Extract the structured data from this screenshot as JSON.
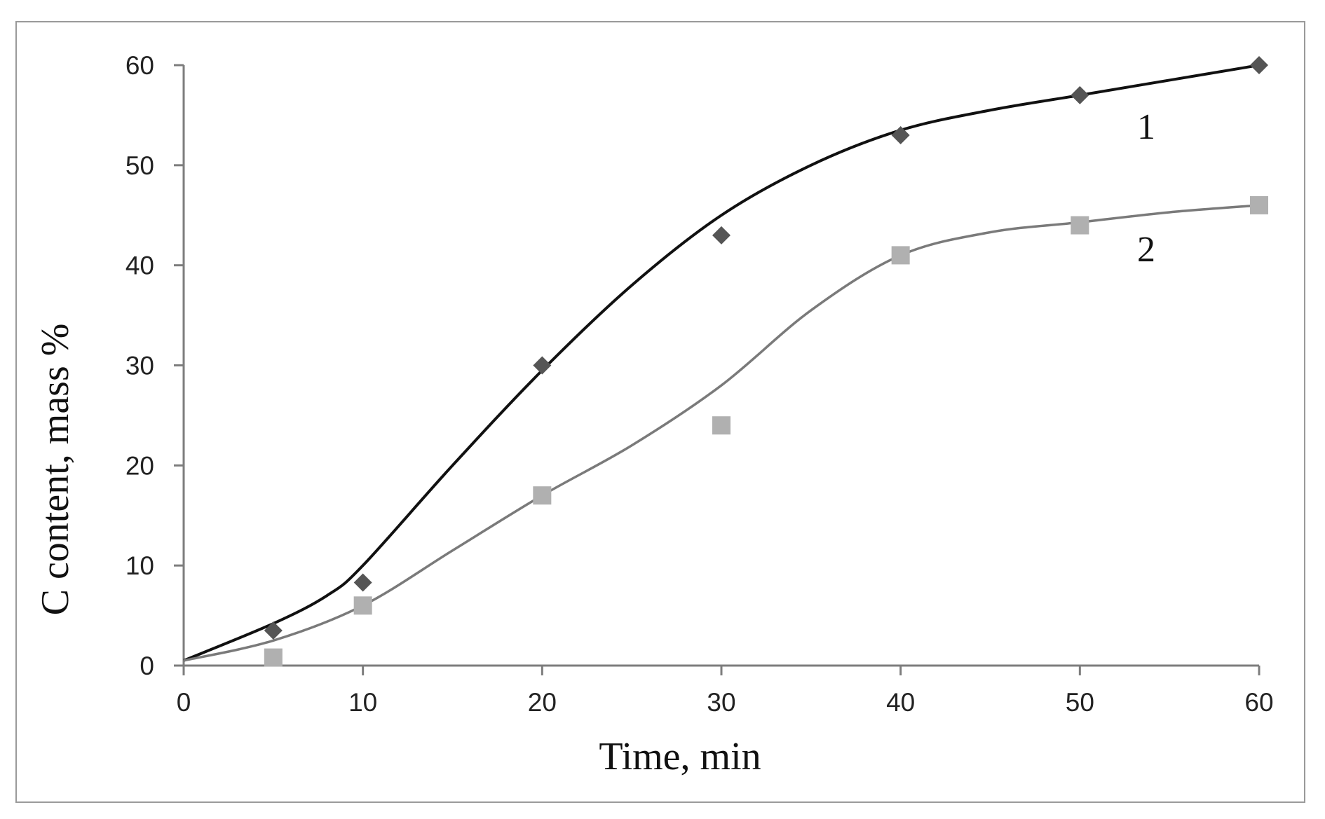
{
  "chart_data": {
    "type": "scatter",
    "xlabel": "Time, min",
    "ylabel": "C content, mass %",
    "xlim": [
      0,
      60
    ],
    "ylim": [
      0,
      60
    ],
    "xticks": [
      "0",
      "10",
      "20",
      "30",
      "40",
      "50",
      "60"
    ],
    "yticks": [
      "0",
      "10",
      "20",
      "30",
      "40",
      "50",
      "60"
    ],
    "grid": false,
    "series": [
      {
        "name": "1",
        "marker": "diamond",
        "color": "#555555",
        "line_color": "#111111",
        "points": [
          [
            5,
            3.5
          ],
          [
            10,
            8.3
          ],
          [
            20,
            30
          ],
          [
            30,
            43
          ],
          [
            40,
            53
          ],
          [
            50,
            57
          ],
          [
            60,
            60
          ]
        ],
        "curve": [
          [
            0,
            0.5
          ],
          [
            5,
            4.2
          ],
          [
            8,
            7
          ],
          [
            10,
            10
          ],
          [
            15,
            20
          ],
          [
            20,
            29.5
          ],
          [
            25,
            38
          ],
          [
            30,
            45
          ],
          [
            35,
            50
          ],
          [
            40,
            53.5
          ],
          [
            45,
            55.5
          ],
          [
            50,
            57
          ],
          [
            55,
            58.5
          ],
          [
            60,
            60
          ]
        ]
      },
      {
        "name": "2",
        "marker": "square",
        "color": "#b0b0b0",
        "line_color": "#7a7a7a",
        "points": [
          [
            5,
            0.8
          ],
          [
            10,
            6
          ],
          [
            20,
            17
          ],
          [
            30,
            24
          ],
          [
            40,
            41
          ],
          [
            50,
            44
          ],
          [
            60,
            46
          ]
        ],
        "curve": [
          [
            0,
            0.5
          ],
          [
            5,
            2.5
          ],
          [
            10,
            6
          ],
          [
            15,
            11.5
          ],
          [
            20,
            17
          ],
          [
            25,
            22
          ],
          [
            30,
            28
          ],
          [
            35,
            35.5
          ],
          [
            40,
            41
          ],
          [
            45,
            43.3
          ],
          [
            50,
            44.3
          ],
          [
            55,
            45.3
          ],
          [
            60,
            46
          ]
        ]
      }
    ]
  }
}
